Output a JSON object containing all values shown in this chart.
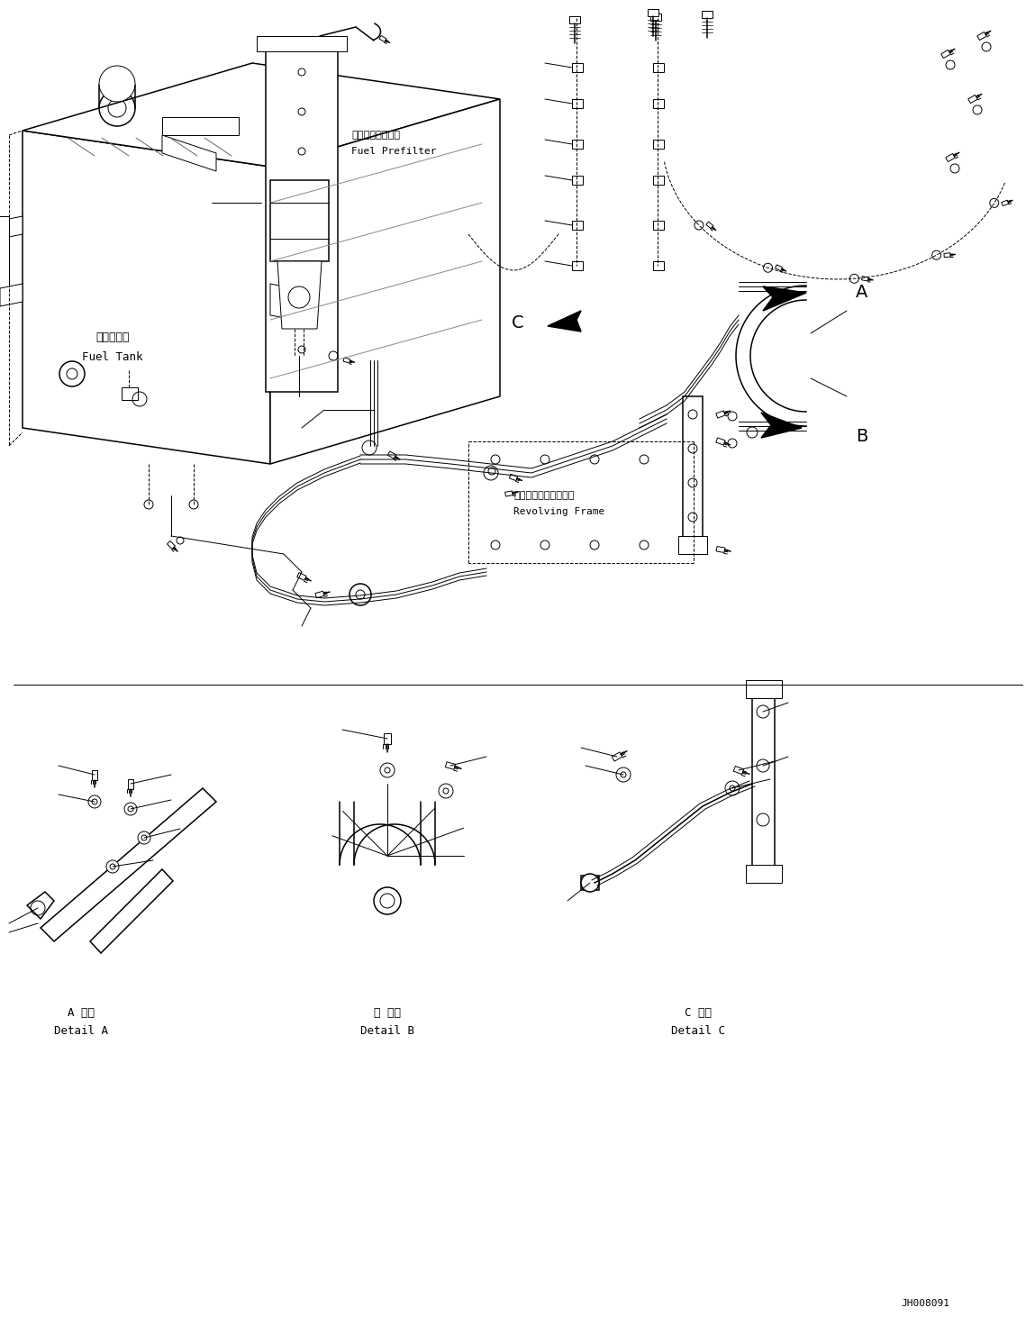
{
  "background_color": "#ffffff",
  "line_color": "#000000",
  "figure_width": 11.49,
  "figure_height": 14.62,
  "dpi": 100,
  "labels": {
    "fuel_prefilter_jp": "燃料プレフィルタ",
    "fuel_prefilter_en": "Fuel Prefilter",
    "fuel_tank_jp": "燃料タンク",
    "fuel_tank_en": "Fuel Tank",
    "revolving_frame_jp": "レボルビングフレーム",
    "revolving_frame_en": "Revolving Frame",
    "detail_a_jp": "A 詳細",
    "detail_a_en": "Detail A",
    "detail_b_jp": "日 詳細",
    "detail_b_en": "Detail B",
    "detail_c_jp": "C 詳細",
    "detail_c_en": "Detail C",
    "part_number": "JH008091",
    "label_A": "A",
    "label_B": "B",
    "label_C": "C"
  }
}
